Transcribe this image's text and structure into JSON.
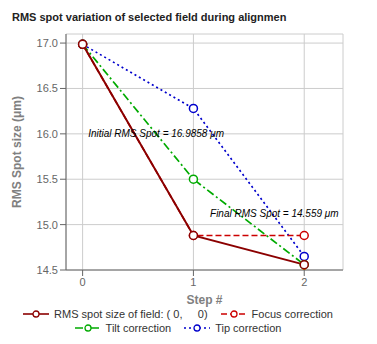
{
  "chart_data": {
    "type": "line",
    "title": "RMS spot variation of selected field during alignmen",
    "x_label": "Step #",
    "y_label": "RMS Spot size (μm)",
    "x": [
      0,
      1,
      2
    ],
    "series": [
      {
        "name": "RMS spot size of field: ( 0,     0)",
        "color": "#8b0000",
        "line_style": "solid",
        "marker": "circle",
        "values": [
          16.9858,
          14.88,
          14.559
        ]
      },
      {
        "name": "Focus correction",
        "color": "#cc0000",
        "line_style": "dashed",
        "marker": "circle",
        "values": [
          16.9858,
          14.88,
          14.88
        ]
      },
      {
        "name": "Tilt correction",
        "color": "#00aa00",
        "line_style": "dashdot",
        "marker": "circle",
        "values": [
          16.9858,
          15.5,
          14.559
        ]
      },
      {
        "name": "Tip correction",
        "color": "#0000cc",
        "line_style": "dotted",
        "marker": "circle",
        "values": [
          16.9858,
          16.28,
          14.65
        ]
      },
      {
        "type": "scatter",
        "color": "#ff6600",
        "marker": "diamond",
        "values": [
          null,
          null,
          14.559
        ]
      }
    ],
    "xlim": [
      -0.15,
      2.35
    ],
    "xticks": [
      0,
      1,
      2
    ],
    "ylim": [
      14.5,
      17.1
    ],
    "yticks": [
      14.5,
      {
        "value": 15,
        "label": "15.0"
      },
      15.5,
      {
        "value": 16,
        "label": "16.0"
      },
      16.5,
      {
        "value": 17,
        "label": "17.0"
      }
    ],
    "grid": true,
    "legend": "bottom",
    "annotations": [
      {
        "text": "Initial RMS Spot = 16.9858 μm",
        "x": 0.05,
        "y": 15.97
      },
      {
        "text": "Final RMS Spot = 14.559 μm",
        "x": 1.15,
        "y": 15.08
      }
    ]
  }
}
